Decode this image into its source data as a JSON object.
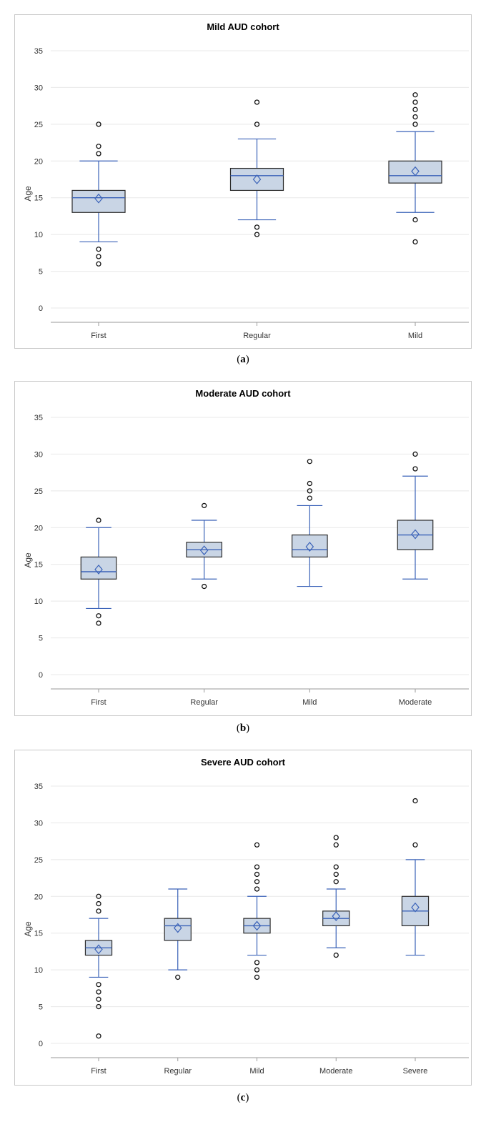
{
  "chart_data": [
    {
      "type": "box",
      "title": "Mild AUD cohort",
      "caption": "a",
      "ylabel": "Age",
      "ylim": [
        -2,
        37
      ],
      "yticks": [
        0,
        5,
        10,
        15,
        20,
        25,
        30,
        35
      ],
      "categories": [
        "First",
        "Regular",
        "Mild"
      ],
      "boxes": [
        {
          "min": 9,
          "q1": 13,
          "median": 15,
          "q3": 16,
          "max": 20,
          "mean": 14.9,
          "outliers": [
            25,
            22,
            21,
            8,
            7,
            6
          ]
        },
        {
          "min": 12,
          "q1": 16,
          "median": 18,
          "q3": 19,
          "max": 23,
          "mean": 17.5,
          "outliers": [
            28,
            25,
            11,
            10
          ]
        },
        {
          "min": 13,
          "q1": 17,
          "median": 18,
          "q3": 20,
          "max": 24,
          "mean": 18.6,
          "outliers": [
            29,
            28,
            27,
            26,
            25,
            12,
            9
          ]
        }
      ]
    },
    {
      "type": "box",
      "title": "Moderate AUD cohort",
      "caption": "b",
      "ylabel": "Age",
      "ylim": [
        -2,
        37
      ],
      "yticks": [
        0,
        5,
        10,
        15,
        20,
        25,
        30,
        35
      ],
      "categories": [
        "First",
        "Regular",
        "Mild",
        "Moderate"
      ],
      "boxes": [
        {
          "min": 9,
          "q1": 13,
          "median": 14,
          "q3": 16,
          "max": 20,
          "mean": 14.3,
          "outliers": [
            21,
            8,
            7
          ]
        },
        {
          "min": 13,
          "q1": 16,
          "median": 17,
          "q3": 18,
          "max": 21,
          "mean": 16.9,
          "outliers": [
            23,
            12
          ]
        },
        {
          "min": 12,
          "q1": 16,
          "median": 17,
          "q3": 19,
          "max": 23,
          "mean": 17.4,
          "outliers": [
            29,
            26,
            25,
            24
          ]
        },
        {
          "min": 13,
          "q1": 17,
          "median": 19,
          "q3": 21,
          "max": 27,
          "mean": 19.1,
          "outliers": [
            30,
            28
          ]
        }
      ]
    },
    {
      "type": "box",
      "title": "Severe AUD cohort",
      "caption": "c",
      "ylabel": "Age",
      "ylim": [
        -2,
        37
      ],
      "yticks": [
        0,
        5,
        10,
        15,
        20,
        25,
        30,
        35
      ],
      "categories": [
        "First",
        "Regular",
        "Mild",
        "Moderate",
        "Severe"
      ],
      "boxes": [
        {
          "min": 9,
          "q1": 12,
          "median": 13,
          "q3": 14,
          "max": 17,
          "mean": 12.8,
          "outliers": [
            20,
            19,
            18,
            8,
            7,
            6,
            5,
            1
          ]
        },
        {
          "min": 10,
          "q1": 14,
          "median": 16,
          "q3": 17,
          "max": 21,
          "mean": 15.7,
          "outliers": [
            9
          ]
        },
        {
          "min": 12,
          "q1": 15,
          "median": 16,
          "q3": 17,
          "max": 20,
          "mean": 16.0,
          "outliers": [
            27,
            24,
            23,
            22,
            21,
            11,
            10,
            9
          ]
        },
        {
          "min": 13,
          "q1": 16,
          "median": 17,
          "q3": 18,
          "max": 21,
          "mean": 17.3,
          "outliers": [
            28,
            27,
            24,
            23,
            22,
            12
          ]
        },
        {
          "min": 12,
          "q1": 16,
          "median": 18,
          "q3": 20,
          "max": 25,
          "mean": 18.5,
          "outliers": [
            33,
            27
          ]
        }
      ]
    }
  ],
  "colors": {
    "box_fill": "#c9d5e5",
    "box_border": "#2b2b2b",
    "whisker": "#3a62b8",
    "grid": "#e8e8e8",
    "axis": "#9a9a9a"
  }
}
